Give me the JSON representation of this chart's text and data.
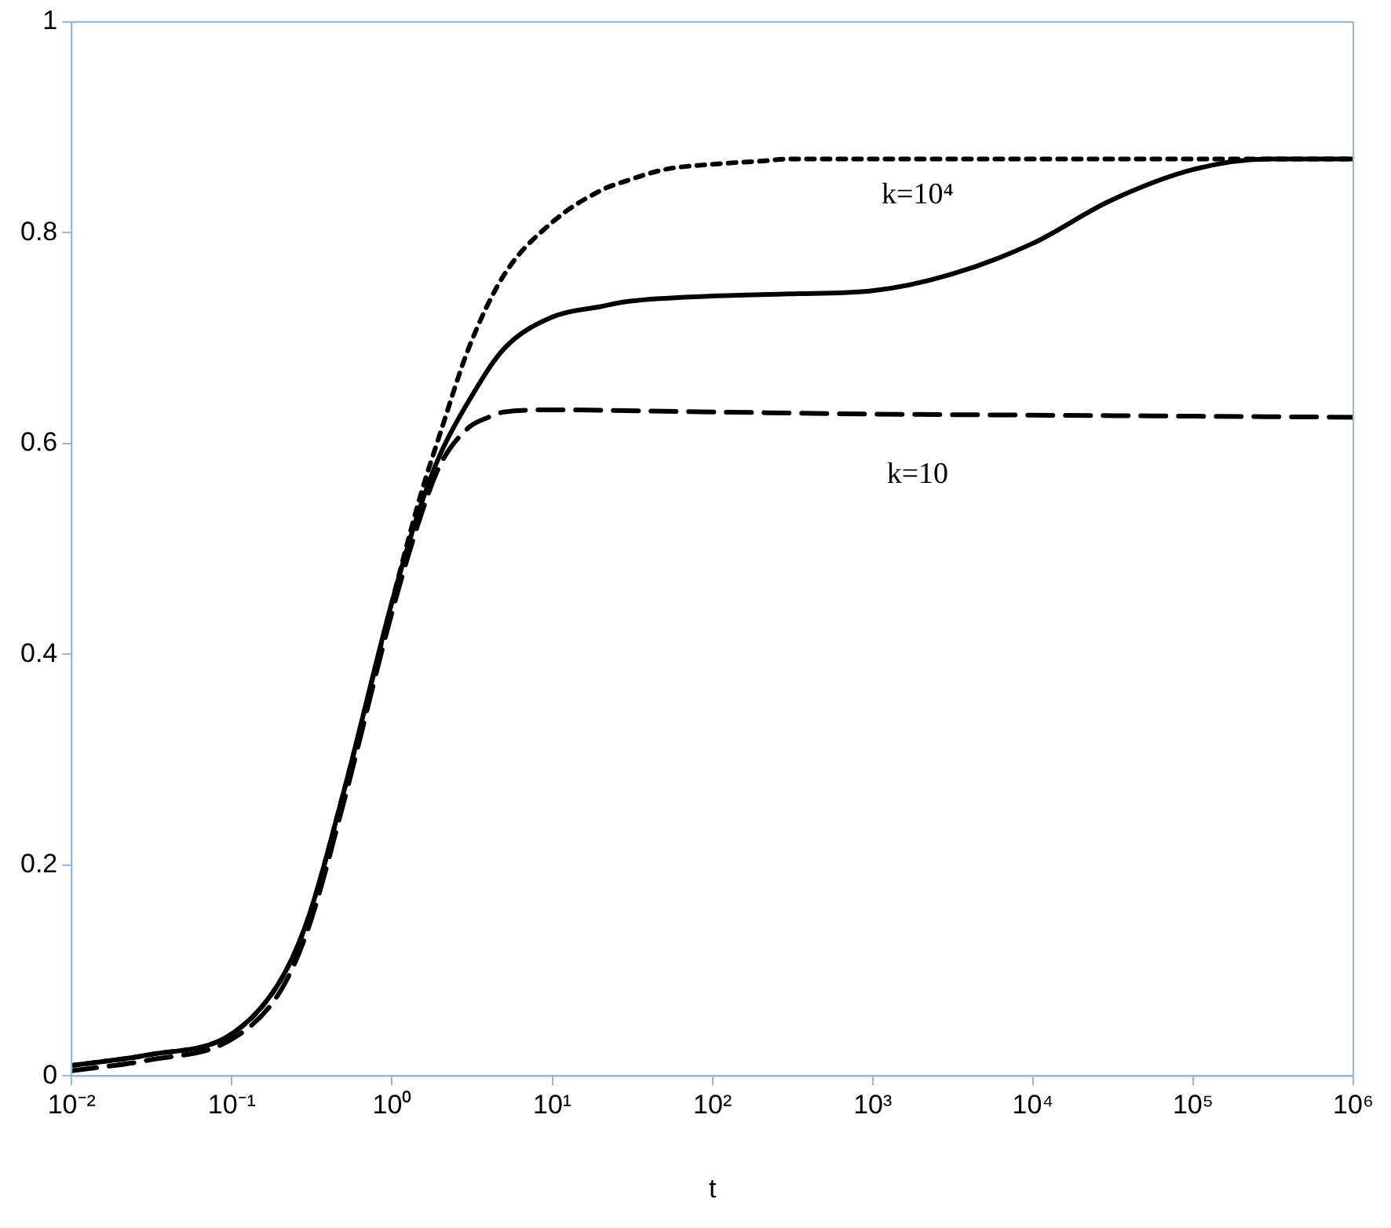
{
  "chart_data": {
    "type": "line",
    "xlabel": "t",
    "log": "x",
    "grid": false,
    "legend": false,
    "marker": "none",
    "xlim": [
      0.01,
      1000000
    ],
    "ylim": [
      0,
      1
    ],
    "xticks": [
      {
        "value": 0.01,
        "label": "10⁻²"
      },
      {
        "value": 0.1,
        "label": "10⁻¹"
      },
      {
        "value": 1,
        "label": "10⁰"
      },
      {
        "value": 10,
        "label": "10¹"
      },
      {
        "value": 100,
        "label": "10²"
      },
      {
        "value": 1000,
        "label": "10³"
      },
      {
        "value": 10000,
        "label": "10⁴"
      },
      {
        "value": 100000,
        "label": "10⁵"
      },
      {
        "value": 1000000,
        "label": "10⁶"
      }
    ],
    "yticks": [
      0,
      0.2,
      0.4,
      0.6,
      0.8,
      1
    ],
    "series": [
      {
        "color": "#000000",
        "line_style": "dotted",
        "x": [
          0.01,
          0.03,
          0.1,
          0.2,
          0.3,
          0.5,
          1,
          1.5,
          2,
          3,
          5,
          10,
          20,
          30,
          50,
          100,
          200,
          300,
          1000,
          10000,
          100000,
          1000000
        ],
        "values": [
          0.01,
          0.02,
          0.04,
          0.09,
          0.15,
          0.27,
          0.45,
          0.55,
          0.61,
          0.69,
          0.76,
          0.81,
          0.84,
          0.85,
          0.86,
          0.865,
          0.868,
          0.87,
          0.87,
          0.87,
          0.87,
          0.87
        ]
      },
      {
        "color": "#000000",
        "line_style": "solid",
        "x": [
          0.01,
          0.03,
          0.1,
          0.2,
          0.3,
          0.5,
          1,
          1.5,
          2,
          3,
          5,
          10,
          20,
          30,
          100,
          300,
          1000,
          3000,
          10000,
          30000,
          100000,
          300000,
          1000000
        ],
        "values": [
          0.01,
          0.02,
          0.04,
          0.09,
          0.15,
          0.27,
          0.45,
          0.54,
          0.59,
          0.64,
          0.69,
          0.72,
          0.73,
          0.735,
          0.74,
          0.742,
          0.745,
          0.76,
          0.79,
          0.83,
          0.86,
          0.87,
          0.87
        ]
      },
      {
        "color": "#000000",
        "line_style": "dashed",
        "x": [
          0.01,
          0.03,
          0.1,
          0.2,
          0.3,
          0.5,
          1,
          1.5,
          2,
          3,
          4,
          5,
          10,
          100,
          1000,
          10000,
          100000,
          1000000
        ],
        "values": [
          0.005,
          0.015,
          0.035,
          0.08,
          0.14,
          0.26,
          0.44,
          0.53,
          0.58,
          0.615,
          0.625,
          0.63,
          0.632,
          0.63,
          0.628,
          0.627,
          0.626,
          0.625
        ]
      }
    ],
    "annotations": [
      "k=10⁴",
      "k=10"
    ]
  }
}
